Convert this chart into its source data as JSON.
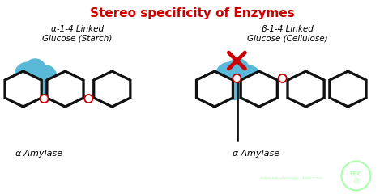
{
  "title": "Stereo specificity of Enzymes",
  "title_color": "#cc0000",
  "title_fontsize": 11,
  "bg_color": "#ffffff",
  "left_label": "α-1-4 Linked\nGlucose (Starch)",
  "right_label": "β-1-4 Linked\nGlucose (Cellulose)",
  "left_enzyme_label": "α-Amylase",
  "right_enzyme_label": "α-Amylase",
  "hex_color": "#111111",
  "hex_fill": "#ffffff",
  "enzyme_color": "#5ab8d8",
  "link_color": "#cc0000",
  "cross_color": "#cc0000",
  "arrow_color": "#111111",
  "watermark_color": "#aaffaa",
  "ebc_color": "#aaffaa",
  "figw": 4.74,
  "figh": 2.4,
  "dpi": 100
}
